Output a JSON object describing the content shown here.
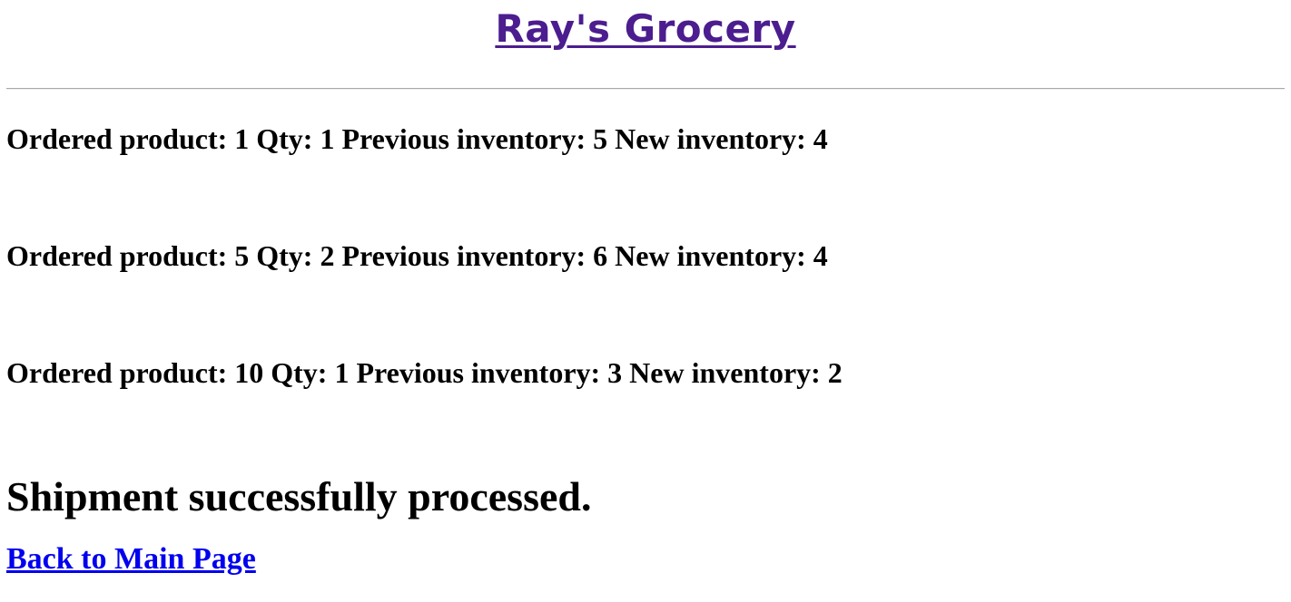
{
  "header": {
    "title": "Ray's Grocery",
    "title_color": "#4b1d8f"
  },
  "orders": [
    {
      "text": "Ordered product: 1 Qty: 1 Previous inventory: 5 New inventory: 4"
    },
    {
      "text": "Ordered product: 5 Qty: 2 Previous inventory: 6 New inventory: 4"
    },
    {
      "text": "Ordered product: 10 Qty: 1 Previous inventory: 3 New inventory: 2"
    }
  ],
  "status": {
    "message": "Shipment successfully processed."
  },
  "navigation": {
    "back_label": "Back to Main Page",
    "link_color": "#0000ee"
  }
}
